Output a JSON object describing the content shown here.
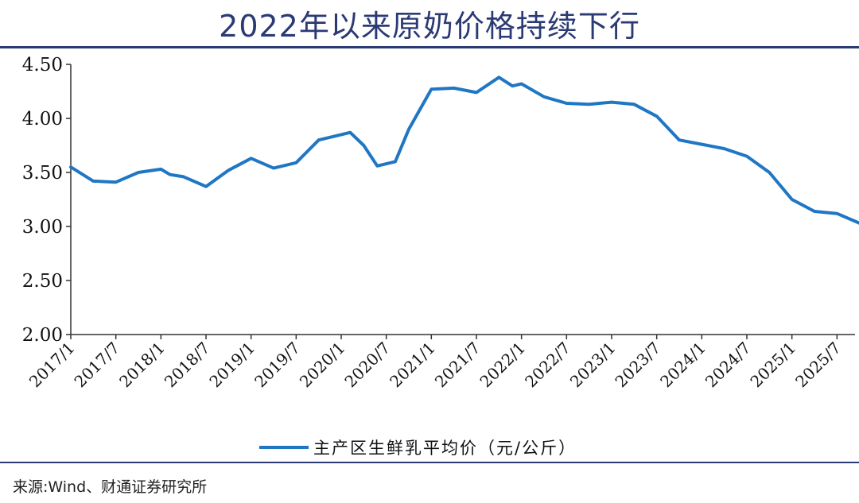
{
  "page": {
    "title": "2022年以来原奶价格持续下行",
    "source": "来源:Wind、财通证券研究所",
    "accent_color": "#2b3a74"
  },
  "chart_data": {
    "type": "line",
    "title": "2022年以来原奶价格持续下行",
    "xlabel": "",
    "ylabel": "",
    "ylim": [
      2.0,
      4.5
    ],
    "yticks": [
      "4.50",
      "4.00",
      "3.50",
      "3.00",
      "2.50",
      "2.00"
    ],
    "xticks": [
      "2017/1",
      "2017/7",
      "2018/1",
      "2018/7",
      "2019/1",
      "2019/7",
      "2020/1",
      "2020/7",
      "2021/1",
      "2021/7",
      "2022/1",
      "2022/7",
      "2023/1",
      "2023/7",
      "2024/1",
      "2024/7",
      "2025/1",
      "2025/7"
    ],
    "grid": false,
    "legend_position": "bottom",
    "series": [
      {
        "name": "主产区生鲜乳平均价（元/公斤）",
        "color": "#1f77c4",
        "x": [
          2017.0,
          2017.25,
          2017.5,
          2017.75,
          2018.0,
          2018.1,
          2018.25,
          2018.5,
          2018.75,
          2019.0,
          2019.25,
          2019.5,
          2019.75,
          2020.0,
          2020.1,
          2020.25,
          2020.4,
          2020.6,
          2020.75,
          2021.0,
          2021.25,
          2021.5,
          2021.75,
          2021.9,
          2022.0,
          2022.25,
          2022.5,
          2022.75,
          2023.0,
          2023.25,
          2023.5,
          2023.75,
          2024.0,
          2024.25,
          2024.5,
          2024.75,
          2025.0,
          2025.25,
          2025.5,
          2025.75
        ],
        "values": [
          3.55,
          3.42,
          3.41,
          3.5,
          3.53,
          3.48,
          3.46,
          3.37,
          3.52,
          3.63,
          3.54,
          3.59,
          3.8,
          3.85,
          3.87,
          3.75,
          3.56,
          3.6,
          3.9,
          4.27,
          4.28,
          4.24,
          4.38,
          4.3,
          4.32,
          4.2,
          4.14,
          4.13,
          4.15,
          4.13,
          4.02,
          3.8,
          3.76,
          3.72,
          3.65,
          3.5,
          3.25,
          3.14,
          3.12,
          3.03
        ]
      }
    ]
  }
}
